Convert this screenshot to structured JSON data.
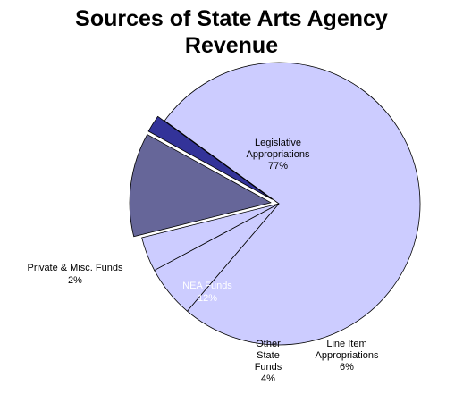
{
  "chart_data": {
    "type": "pie",
    "title": "Sources of State Arts Agency Revenue",
    "title_lines": [
      "Sources of State Arts Agency",
      "Revenue"
    ],
    "slices": [
      {
        "label_lines": [
          "Legislative",
          "Appropriations",
          "77%"
        ],
        "value": 77,
        "color": "#ccccff",
        "label_color": "#000000",
        "exploded": false
      },
      {
        "label_lines": [
          "Line Item",
          "Appropriations",
          "6%"
        ],
        "value": 6,
        "color": "#ccccff",
        "label_color": "#000000",
        "exploded": false
      },
      {
        "label_lines": [
          "Other",
          "State",
          "Funds",
          "4%"
        ],
        "value": 4,
        "color": "#ccccff",
        "label_color": "#000000",
        "exploded": false
      },
      {
        "label_lines": [
          "NEA Funds",
          "12%"
        ],
        "value": 12,
        "color": "#666699",
        "label_color": "#ffffff",
        "exploded": true
      },
      {
        "label_lines": [
          "Private & Misc. Funds",
          "2%"
        ],
        "value": 2,
        "color": "#333399",
        "label_color": "#000000",
        "exploded": true
      }
    ]
  }
}
